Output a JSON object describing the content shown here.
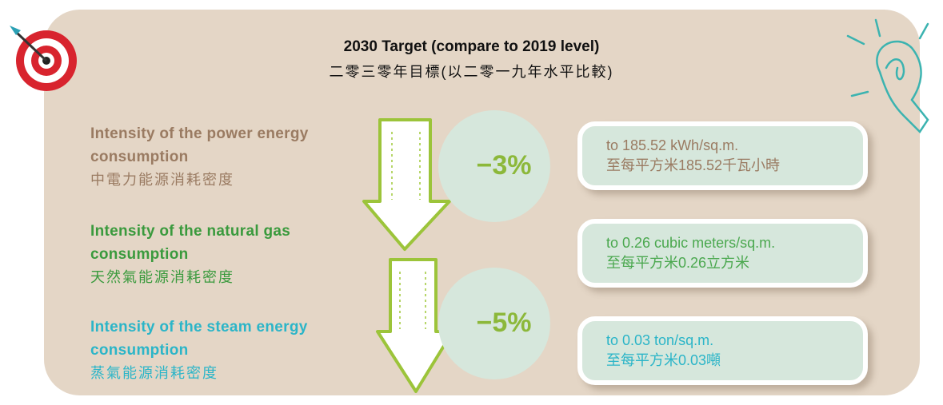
{
  "header": {
    "title": "2030 Target (compare to 2019 level)",
    "subtitle": "二零三零年目標(以二零一九年水平比較)"
  },
  "items": [
    {
      "label": [
        "Intensity of the power energy",
        "consumption",
        "中電力能源消耗密度"
      ],
      "target": [
        "to 185.52 kWh/sq.m.",
        "至每平方米185.52千瓦小時"
      ]
    },
    {
      "label": [
        "Intensity of the natural gas",
        "consumption",
        "天然氣能源消耗密度"
      ],
      "target": [
        "to 0.26 cubic meters/sq.m.",
        "至每平方米0.26立方米"
      ]
    },
    {
      "label": [
        "Intensity of the steam energy",
        "consumption",
        "蒸氣能源消耗密度"
      ],
      "target": [
        "to 0.03 ton/sq.m.",
        "至每平方米0.03噸"
      ]
    }
  ],
  "reductions": [
    "−3%",
    "−5%"
  ]
}
